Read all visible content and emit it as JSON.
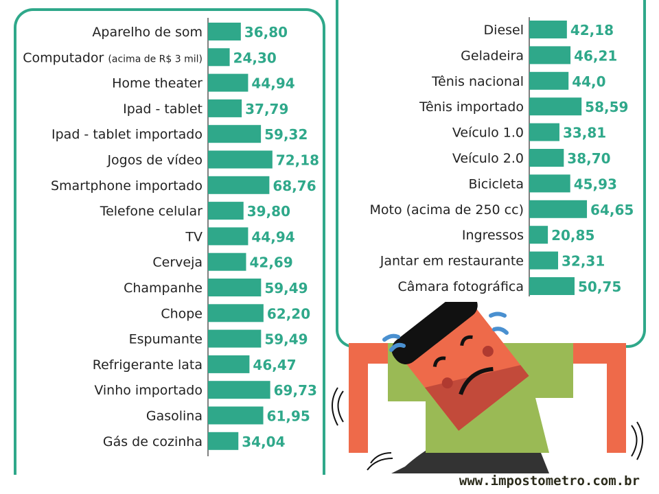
{
  "chart_data": [
    {
      "type": "bar",
      "orientation": "horizontal",
      "categories": [
        "Aparelho de som",
        "Computador (acima de R$ 3 mil)",
        "Home theater",
        "Ipad - tablet",
        "Ipad - tablet importado",
        "Jogos de vídeo",
        "Smartphone importado",
        "Telefone celular",
        "TV",
        "Cerveja",
        "Champanhe",
        "Chope",
        "Espumante",
        "Refrigerante lata",
        "Vinho importado",
        "Gasolina",
        "Gás de cozinha"
      ],
      "values": [
        36.8,
        24.3,
        44.94,
        37.79,
        59.32,
        72.18,
        68.76,
        39.8,
        44.94,
        42.69,
        59.49,
        62.2,
        59.49,
        46.47,
        69.73,
        61.95,
        34.04
      ],
      "data_labels": [
        "36,80",
        "24,30",
        "44,94",
        "37,79",
        "59,32",
        "72,18",
        "68,76",
        "39,80",
        "44,94",
        "42,69",
        "59,49",
        "62,20",
        "59,49",
        "46,47",
        "69,73",
        "61,95",
        "34,04"
      ],
      "bar_color": "#2fa88a",
      "grid": false
    },
    {
      "type": "bar",
      "orientation": "horizontal",
      "categories": [
        "Diesel",
        "Geladeira",
        "Tênis nacional",
        "Tênis importado",
        "Veículo 1.0",
        "Veículo 2.0",
        "Bicicleta",
        "Moto (acima de 250 cc)",
        "Ingressos",
        "Jantar em restaurante",
        "Câmara fotográfica"
      ],
      "values": [
        42.18,
        46.21,
        44.0,
        58.59,
        33.81,
        38.7,
        45.93,
        64.65,
        20.85,
        32.31,
        50.75
      ],
      "data_labels": [
        "42,18",
        "46,21",
        "44,0",
        "58,59",
        "33,81",
        "38,70",
        "45,93",
        "64,65",
        "20,85",
        "32,31",
        "50,75"
      ],
      "bar_color": "#2fa88a",
      "grid": false
    }
  ],
  "footer": {
    "website": "www.impostometro.com.br"
  }
}
